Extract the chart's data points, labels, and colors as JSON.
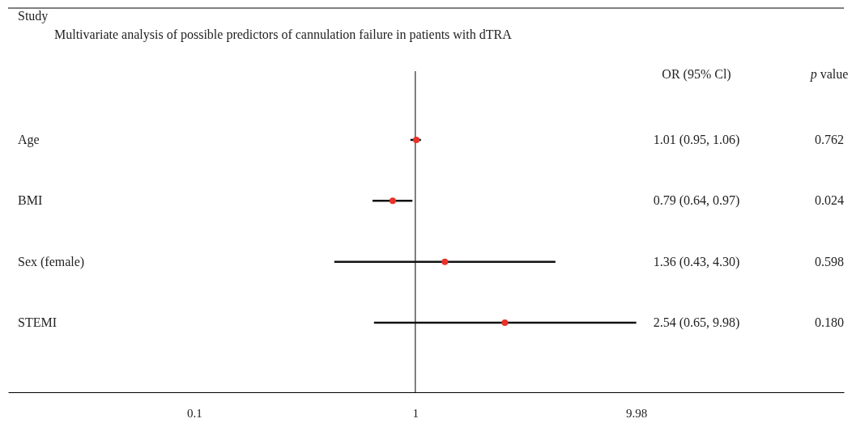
{
  "chart_data": {
    "type": "scatter",
    "orientation": "horizontal",
    "title": "Multivariate analysis of possible predictors of cannulation failure in patients with dTRA",
    "ylabel": "Study",
    "categories": [
      "Age",
      "BMI",
      "Sex (female)",
      "STEMI"
    ],
    "values": [
      1.01,
      0.79,
      1.36,
      2.54
    ],
    "errors": [
      [
        0.95,
        1.06
      ],
      [
        0.64,
        0.97
      ],
      [
        0.43,
        4.3
      ],
      [
        0.65,
        9.98
      ]
    ],
    "color": "#e8322a",
    "marker": "circle",
    "log": "x",
    "xlim": [
      0.0144,
      86.7
    ],
    "xticks": [
      0.1,
      1,
      9.98
    ],
    "ref_lines": [
      {
        "axis": "x",
        "value": 1,
        "color": "#000000"
      }
    ],
    "annotations": [
      "OR (95% Cl)",
      "p value",
      "1.01 (0.95, 1.06)",
      "0.79 (0.64, 0.97)",
      "1.36 (0.43, 4.30)",
      "2.54 (0.65, 9.98)",
      "0.762",
      "0.024",
      "0.598",
      "0.180"
    ],
    "grid": false
  }
}
